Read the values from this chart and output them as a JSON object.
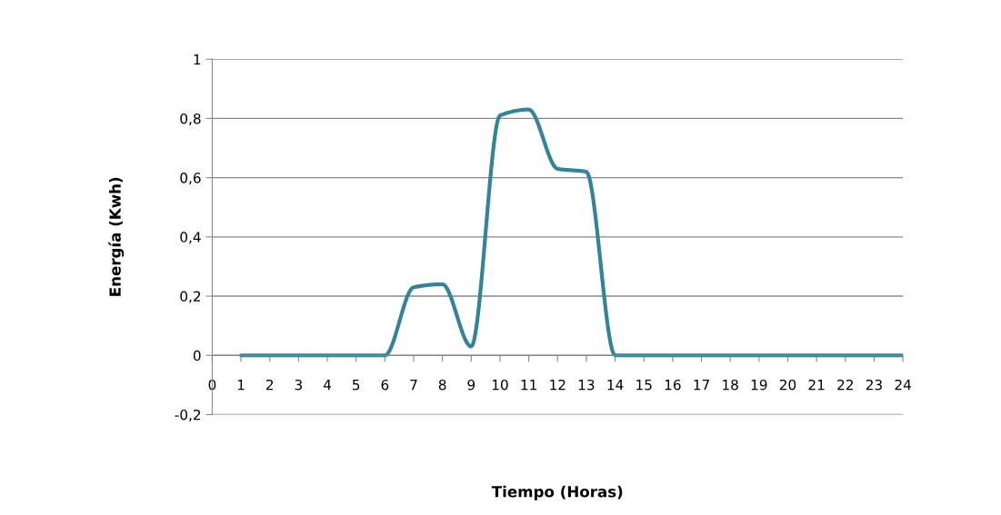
{
  "chart_data": {
    "type": "line",
    "xlabel": "Tiempo (Horas)",
    "ylabel": "Energía (Kwh)",
    "x": [
      1,
      2,
      3,
      4,
      5,
      6,
      7,
      8,
      9,
      10,
      11,
      12,
      13,
      14,
      15,
      16,
      17,
      18,
      19,
      20,
      21,
      22,
      23,
      24
    ],
    "series": [
      {
        "color": "#31849b",
        "values": [
          0,
          0,
          0,
          0,
          0,
          0,
          0.23,
          0.24,
          0.03,
          0.81,
          0.83,
          0.63,
          0.62,
          0,
          0,
          0,
          0,
          0,
          0,
          0,
          0,
          0,
          0,
          0
        ]
      }
    ],
    "xlim": [
      0,
      24
    ],
    "xticks": [
      0,
      1,
      2,
      3,
      4,
      5,
      6,
      7,
      8,
      9,
      10,
      11,
      12,
      13,
      14,
      15,
      16,
      17,
      18,
      19,
      20,
      21,
      22,
      23,
      24
    ],
    "ylim": [
      -0.2,
      1
    ],
    "yticks": [
      {
        "value": -0.2,
        "label": "-0,2"
      },
      {
        "value": 0,
        "label": "0"
      },
      {
        "value": 0.2,
        "label": "0,2"
      },
      {
        "value": 0.4,
        "label": "0,4"
      },
      {
        "value": 0.6,
        "label": "0,6"
      },
      {
        "value": 0.8,
        "label": "0,8"
      },
      {
        "value": 1,
        "label": "1"
      }
    ],
    "grid": "y",
    "legend": false,
    "marker": "none",
    "line_style": "solid"
  }
}
